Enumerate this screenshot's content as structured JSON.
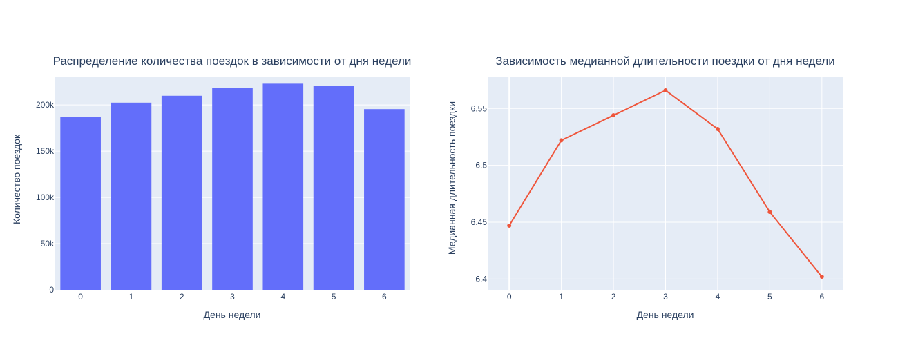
{
  "chart_data": [
    {
      "type": "bar",
      "title": "Распределение количества поездок в зависимости от дня недели",
      "xlabel": "День недели",
      "ylabel": "Количество поездок",
      "categories": [
        "0",
        "1",
        "2",
        "3",
        "4",
        "5",
        "6"
      ],
      "values": [
        187000,
        202500,
        210000,
        218500,
        223000,
        220500,
        195500
      ],
      "ylim": [
        0,
        230000
      ],
      "yticks": [
        0,
        50000,
        100000,
        150000,
        200000
      ],
      "yticklabels": [
        "0",
        "50k",
        "100k",
        "150k",
        "200k"
      ],
      "color": "#636efa",
      "plot_bg": "#e5ecf6",
      "grid": true
    },
    {
      "type": "line",
      "title": "Зависимость медианной длительности поездки от дня недели",
      "xlabel": "День недели",
      "ylabel": "Медианная длительность поездки",
      "x": [
        0,
        1,
        2,
        3,
        4,
        5,
        6
      ],
      "y": [
        6.447,
        6.522,
        6.544,
        6.566,
        6.532,
        6.459,
        6.402
      ],
      "xlim": [
        -0.4,
        6.4
      ],
      "ylim": [
        6.3905,
        6.5775
      ],
      "xticks": [
        0,
        1,
        2,
        3,
        4,
        5,
        6
      ],
      "yticks": [
        6.4,
        6.45,
        6.5,
        6.55
      ],
      "yticklabels": [
        "6.4",
        "6.45",
        "6.5",
        "6.55"
      ],
      "color": "#ef553b",
      "markers": true,
      "plot_bg": "#e5ecf6",
      "grid": true
    }
  ]
}
